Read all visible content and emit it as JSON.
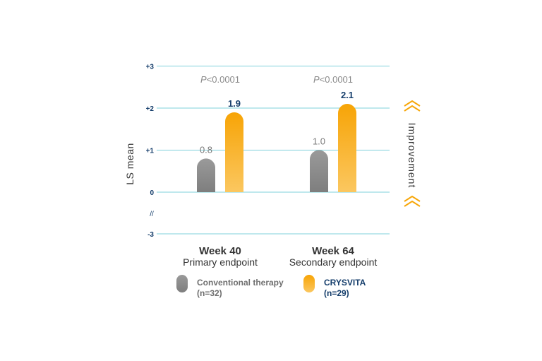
{
  "chart_data": {
    "type": "bar",
    "ylabel": "LS mean",
    "ylim": [
      -3,
      3
    ],
    "yticks": [
      "+3",
      "+2",
      "+1",
      "0",
      "-3"
    ],
    "grid": true,
    "legend_placement": "bottom",
    "categories": [
      {
        "title": "Week 40",
        "subtitle": "Primary endpoint",
        "p_value": "P<0.0001"
      },
      {
        "title": "Week 64",
        "subtitle": "Secondary endpoint",
        "p_value": "P<0.0001"
      }
    ],
    "series": [
      {
        "name": "Conventional therapy",
        "n": "(n=32)",
        "values": [
          0.8,
          1.0
        ],
        "labels": [
          "0.8",
          "1.0"
        ],
        "color": "#8c8c8c"
      },
      {
        "name": "CRYSVITA",
        "n": "(n=29)",
        "values": [
          1.9,
          2.1
        ],
        "labels": [
          "1.9",
          "2.1"
        ],
        "color": "#f7a70a"
      }
    ],
    "annotation": "Improvement",
    "colors": {
      "grid": "#7fd0db",
      "axis_text": "#143d6b",
      "accent": "#f7a70a",
      "gray": "#8c8c8c"
    }
  }
}
